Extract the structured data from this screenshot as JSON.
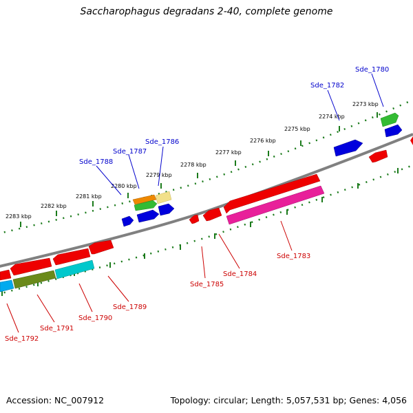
{
  "title": "Saccharophagus degradans 2-40, complete genome",
  "footer": {
    "accession": "Accession: NC_007912",
    "stats": "Topology: circular; Length: 5,057,531 bp; Genes: 4,056"
  },
  "tick_labels": [
    "2273 kbp",
    "2274 kbp",
    "2275 kbp",
    "2276 kbp",
    "2277 kbp",
    "2278 kbp",
    "2279 kbp",
    "2280 kbp",
    "2281 kbp",
    "2282 kbp",
    "2283 kbp"
  ],
  "forward_labels": [
    "Sde_1780",
    "Sde_1782",
    "Sde_1786",
    "Sde_1787",
    "Sde_1788"
  ],
  "reverse_labels": [
    "Sde_1783",
    "Sde_1784",
    "Sde_1785",
    "Sde_1789",
    "Sde_1790",
    "Sde_1791",
    "Sde_1792"
  ],
  "colors": {
    "forward_label": "#0000cc",
    "reverse_label": "#cc0000",
    "backbone": "#808080",
    "tick_green": "#1a7a1a",
    "gene_blue": "#0000dd",
    "gene_red": "#ee0000",
    "gene_magenta": "#e8209a",
    "gene_cyan": "#00c8cc",
    "gene_olive": "#6a8a1a",
    "gene_green": "#33bb33",
    "gene_orange": "#ee8800",
    "gene_yellow": "#f2e08a",
    "gene_skyblue": "#00aaee"
  }
}
